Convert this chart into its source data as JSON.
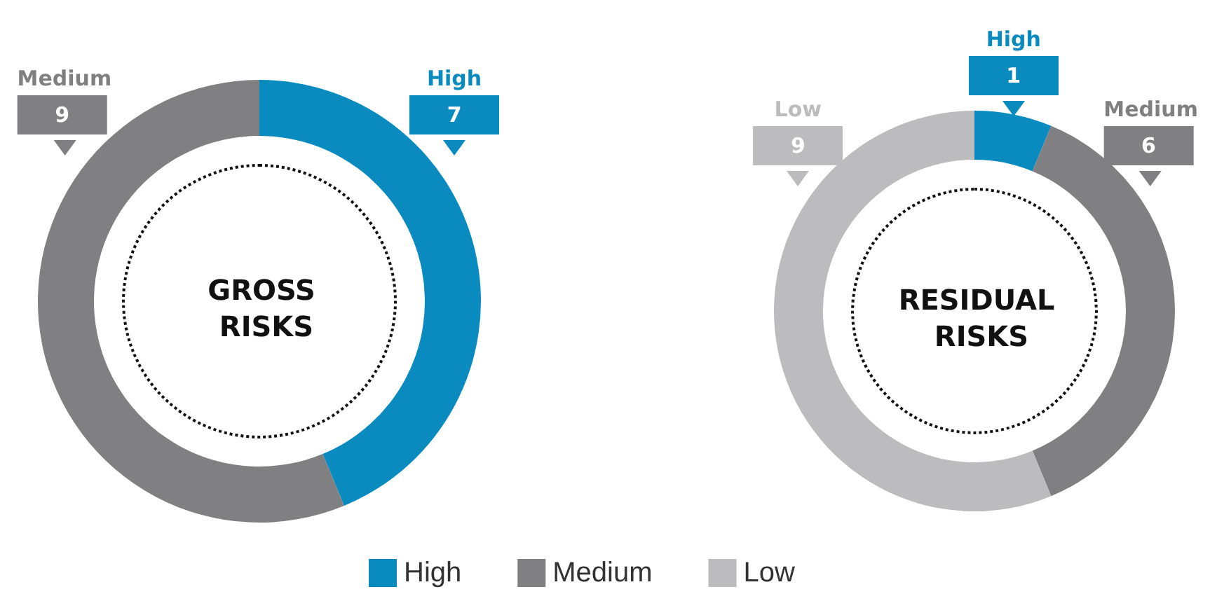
{
  "chart_data": [
    {
      "type": "donut",
      "title": "GROSS RISKS",
      "categories": [
        "High",
        "Medium"
      ],
      "values": [
        7,
        9
      ],
      "colors": [
        "#0a8bc0",
        "#808083"
      ],
      "data_labels": true
    },
    {
      "type": "donut",
      "title": "RESIDUAL RISKS",
      "categories": [
        "High",
        "Medium",
        "Low"
      ],
      "values": [
        1,
        6,
        9
      ],
      "colors": [
        "#0a8bc0",
        "#808083",
        "#bcbcbe"
      ],
      "data_labels": true,
      "legend": "bottom"
    }
  ]
}
